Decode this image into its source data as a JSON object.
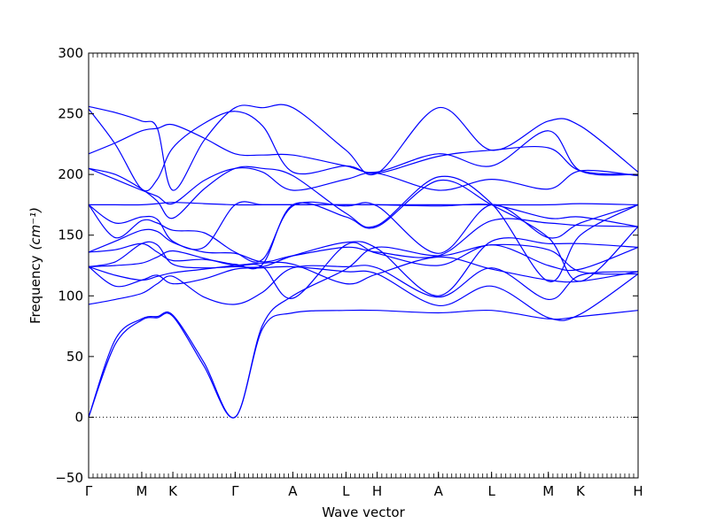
{
  "chart_data": {
    "type": "line",
    "title": "",
    "xlabel": "Wave vector",
    "ylabel": "Frequency",
    "ylabel_unit": "(cm⁻¹)",
    "ylim": [
      -50,
      300
    ],
    "yticks": [
      -50,
      0,
      50,
      100,
      150,
      200,
      250,
      300
    ],
    "grid": false,
    "legend": "none",
    "line_color": "#0000ff",
    "zero_line": {
      "y": 0,
      "style": "dotted",
      "color": "#000000"
    },
    "x_path": [
      {
        "label": "Γ",
        "x": 0.0
      },
      {
        "label": "M",
        "x": 0.58
      },
      {
        "label": "K",
        "x": 0.92
      },
      {
        "label": "Γ",
        "x": 1.6
      },
      {
        "label": "A",
        "x": 2.23
      },
      {
        "label": "L",
        "x": 2.81
      },
      {
        "label": "H",
        "x": 3.15
      },
      {
        "label": "A",
        "x": 3.82
      },
      {
        "label": "L",
        "x": 4.4
      },
      {
        "label": "M",
        "x": 5.02
      },
      {
        "label": "K",
        "x": 5.37
      },
      {
        "label": "H",
        "x": 6.0
      }
    ],
    "series": [
      {
        "points": [
          [
            0,
            0
          ],
          [
            0.29,
            60
          ],
          [
            0.58,
            80
          ],
          [
            0.75,
            82
          ],
          [
            0.92,
            83
          ],
          [
            1.26,
            42
          ],
          [
            1.6,
            0
          ],
          [
            1.9,
            73
          ],
          [
            2.23,
            86
          ],
          [
            2.81,
            88
          ],
          [
            3.15,
            88
          ],
          [
            3.82,
            86
          ],
          [
            4.4,
            88
          ],
          [
            5.02,
            81
          ],
          [
            5.37,
            83
          ],
          [
            6.0,
            88
          ]
        ]
      },
      {
        "points": [
          [
            0,
            0
          ],
          [
            0.29,
            64
          ],
          [
            0.58,
            81
          ],
          [
            0.75,
            83
          ],
          [
            0.92,
            84
          ],
          [
            1.26,
            45
          ],
          [
            1.6,
            0
          ],
          [
            1.9,
            76
          ],
          [
            2.23,
            100
          ],
          [
            2.81,
            122
          ],
          [
            3.15,
            140
          ],
          [
            3.82,
            133
          ],
          [
            4.4,
            142
          ],
          [
            5.02,
            138
          ],
          [
            5.37,
            120
          ],
          [
            6.0,
            118
          ]
        ]
      },
      {
        "points": [
          [
            0,
            124
          ],
          [
            0.29,
            108
          ],
          [
            0.58,
            113
          ],
          [
            0.75,
            117
          ],
          [
            0.92,
            110
          ],
          [
            1.26,
            114
          ],
          [
            1.6,
            122
          ],
          [
            1.9,
            123
          ],
          [
            2.23,
            124
          ],
          [
            2.81,
            120
          ],
          [
            3.15,
            118
          ],
          [
            3.82,
            92
          ],
          [
            4.4,
            108
          ],
          [
            5.02,
            82
          ],
          [
            5.37,
            85
          ],
          [
            6.0,
            118
          ]
        ]
      },
      {
        "points": [
          [
            0,
            93
          ],
          [
            0.29,
            97
          ],
          [
            0.58,
            102
          ],
          [
            0.75,
            110
          ],
          [
            0.92,
            116
          ],
          [
            1.26,
            99
          ],
          [
            1.6,
            93
          ],
          [
            1.9,
            103
          ],
          [
            2.23,
            123
          ],
          [
            2.81,
            124
          ],
          [
            3.15,
            123
          ],
          [
            3.82,
            99
          ],
          [
            4.4,
            123
          ],
          [
            5.02,
            97
          ],
          [
            5.37,
            117
          ],
          [
            6.0,
            120
          ]
        ]
      },
      {
        "points": [
          [
            0,
            124
          ],
          [
            0.29,
            117
          ],
          [
            0.58,
            113
          ],
          [
            0.75,
            116
          ],
          [
            0.92,
            119
          ],
          [
            1.26,
            122
          ],
          [
            1.6,
            125
          ],
          [
            1.9,
            127
          ],
          [
            2.23,
            126
          ],
          [
            2.81,
            110
          ],
          [
            3.15,
            118
          ],
          [
            3.82,
            132
          ],
          [
            4.4,
            122
          ],
          [
            5.02,
            113
          ],
          [
            5.37,
            112
          ],
          [
            6.0,
            120
          ]
        ]
      },
      {
        "points": [
          [
            0,
            124
          ],
          [
            0.29,
            125
          ],
          [
            0.58,
            127
          ],
          [
            0.75,
            132
          ],
          [
            0.92,
            137
          ],
          [
            1.26,
            131
          ],
          [
            1.6,
            125
          ],
          [
            1.9,
            124
          ],
          [
            2.23,
            98
          ],
          [
            2.81,
            142
          ],
          [
            3.15,
            135
          ],
          [
            3.82,
            125
          ],
          [
            4.4,
            142
          ],
          [
            5.02,
            125
          ],
          [
            5.37,
            122
          ],
          [
            6.0,
            140
          ]
        ]
      },
      {
        "points": [
          [
            0,
            124
          ],
          [
            0.29,
            128
          ],
          [
            0.58,
            143
          ],
          [
            0.75,
            142
          ],
          [
            0.92,
            126
          ],
          [
            1.26,
            123
          ],
          [
            1.6,
            124
          ],
          [
            1.9,
            124
          ],
          [
            2.23,
            133
          ],
          [
            2.81,
            144
          ],
          [
            3.15,
            139
          ],
          [
            3.82,
            100
          ],
          [
            4.4,
            145
          ],
          [
            5.02,
            143
          ],
          [
            5.37,
            143
          ],
          [
            6.0,
            140
          ]
        ]
      },
      {
        "points": [
          [
            0,
            136
          ],
          [
            0.29,
            138
          ],
          [
            0.58,
            143
          ],
          [
            0.75,
            136
          ],
          [
            0.92,
            129
          ],
          [
            1.26,
            130
          ],
          [
            1.6,
            126
          ],
          [
            1.9,
            126
          ],
          [
            2.23,
            175
          ],
          [
            2.81,
            165
          ],
          [
            3.15,
            157
          ],
          [
            3.82,
            195
          ],
          [
            4.4,
            175
          ],
          [
            5.02,
            148
          ],
          [
            5.37,
            112
          ],
          [
            6.0,
            157
          ]
        ]
      },
      {
        "points": [
          [
            0,
            136
          ],
          [
            0.29,
            145
          ],
          [
            0.58,
            154
          ],
          [
            0.75,
            153
          ],
          [
            0.92,
            144
          ],
          [
            1.26,
            136
          ],
          [
            1.6,
            135
          ],
          [
            1.9,
            128
          ],
          [
            2.23,
            133
          ],
          [
            2.81,
            140
          ],
          [
            3.15,
            136
          ],
          [
            3.82,
            133
          ],
          [
            4.4,
            162
          ],
          [
            5.02,
            160
          ],
          [
            5.37,
            158
          ],
          [
            6.0,
            157
          ]
        ]
      },
      {
        "points": [
          [
            0,
            175
          ],
          [
            0.29,
            148
          ],
          [
            0.58,
            162
          ],
          [
            0.75,
            160
          ],
          [
            0.92,
            154
          ],
          [
            1.26,
            152
          ],
          [
            1.6,
            136
          ],
          [
            1.9,
            130
          ],
          [
            2.23,
            174
          ],
          [
            2.81,
            174
          ],
          [
            3.15,
            174
          ],
          [
            3.82,
            135
          ],
          [
            4.4,
            175
          ],
          [
            5.02,
            148
          ],
          [
            5.37,
            160
          ],
          [
            6.0,
            175
          ]
        ]
      },
      {
        "points": [
          [
            0,
            175
          ],
          [
            0.29,
            160
          ],
          [
            0.58,
            165
          ],
          [
            0.75,
            163
          ],
          [
            0.92,
            145
          ],
          [
            1.26,
            140
          ],
          [
            1.6,
            175
          ],
          [
            1.9,
            175
          ],
          [
            2.23,
            175
          ],
          [
            2.81,
            175
          ],
          [
            3.15,
            175
          ],
          [
            3.82,
            174
          ],
          [
            4.4,
            175
          ],
          [
            5.02,
            164
          ],
          [
            5.37,
            165
          ],
          [
            6.0,
            157
          ]
        ]
      },
      {
        "points": [
          [
            0,
            175
          ],
          [
            0.29,
            175
          ],
          [
            0.58,
            175
          ],
          [
            0.75,
            176
          ],
          [
            0.92,
            177
          ],
          [
            1.26,
            176
          ],
          [
            1.6,
            175
          ],
          [
            1.9,
            175
          ],
          [
            2.23,
            175
          ],
          [
            2.81,
            175
          ],
          [
            3.15,
            175
          ],
          [
            3.82,
            175
          ],
          [
            4.4,
            175
          ],
          [
            5.02,
            175
          ],
          [
            5.37,
            176
          ],
          [
            6.0,
            175
          ]
        ]
      },
      {
        "points": [
          [
            0,
            205
          ],
          [
            0.29,
            200
          ],
          [
            0.58,
            188
          ],
          [
            0.75,
            178
          ],
          [
            0.92,
            164
          ],
          [
            1.26,
            188
          ],
          [
            1.6,
            205
          ],
          [
            1.9,
            205
          ],
          [
            2.23,
            199
          ],
          [
            2.81,
            168
          ],
          [
            3.15,
            158
          ],
          [
            3.82,
            198
          ],
          [
            4.4,
            176
          ],
          [
            5.02,
            112
          ],
          [
            5.37,
            150
          ],
          [
            6.0,
            175
          ]
        ]
      },
      {
        "points": [
          [
            0,
            205
          ],
          [
            0.29,
            196
          ],
          [
            0.58,
            187
          ],
          [
            0.75,
            182
          ],
          [
            0.92,
            176
          ],
          [
            1.26,
            195
          ],
          [
            1.6,
            205
          ],
          [
            1.9,
            202
          ],
          [
            2.23,
            187
          ],
          [
            2.81,
            196
          ],
          [
            3.15,
            201
          ],
          [
            3.82,
            187
          ],
          [
            4.4,
            196
          ],
          [
            5.02,
            188
          ],
          [
            5.37,
            203
          ],
          [
            6.0,
            199
          ]
        ]
      },
      {
        "points": [
          [
            0,
            217
          ],
          [
            0.29,
            226
          ],
          [
            0.58,
            236
          ],
          [
            0.75,
            238
          ],
          [
            0.92,
            241
          ],
          [
            1.26,
            230
          ],
          [
            1.6,
            217
          ],
          [
            1.9,
            216
          ],
          [
            2.23,
            216
          ],
          [
            2.81,
            207
          ],
          [
            3.15,
            202
          ],
          [
            3.82,
            217
          ],
          [
            4.4,
            207
          ],
          [
            5.02,
            236
          ],
          [
            5.37,
            203
          ],
          [
            6.0,
            200
          ]
        ]
      },
      {
        "points": [
          [
            0,
            254
          ],
          [
            0.29,
            225
          ],
          [
            0.58,
            188
          ],
          [
            0.75,
            196
          ],
          [
            0.92,
            222
          ],
          [
            1.26,
            242
          ],
          [
            1.6,
            252
          ],
          [
            1.9,
            240
          ],
          [
            2.23,
            202
          ],
          [
            2.81,
            207
          ],
          [
            3.15,
            201
          ],
          [
            3.82,
            215
          ],
          [
            4.4,
            220
          ],
          [
            5.02,
            222
          ],
          [
            5.37,
            203
          ],
          [
            6.0,
            200
          ]
        ]
      },
      {
        "points": [
          [
            0,
            256
          ],
          [
            0.29,
            251
          ],
          [
            0.58,
            244
          ],
          [
            0.75,
            238
          ],
          [
            0.92,
            187
          ],
          [
            1.26,
            228
          ],
          [
            1.6,
            255
          ],
          [
            1.9,
            255
          ],
          [
            2.23,
            255
          ],
          [
            2.81,
            220
          ],
          [
            3.15,
            201
          ],
          [
            3.82,
            255
          ],
          [
            4.4,
            220
          ],
          [
            5.02,
            244
          ],
          [
            5.37,
            240
          ],
          [
            6.0,
            202
          ]
        ]
      }
    ]
  }
}
